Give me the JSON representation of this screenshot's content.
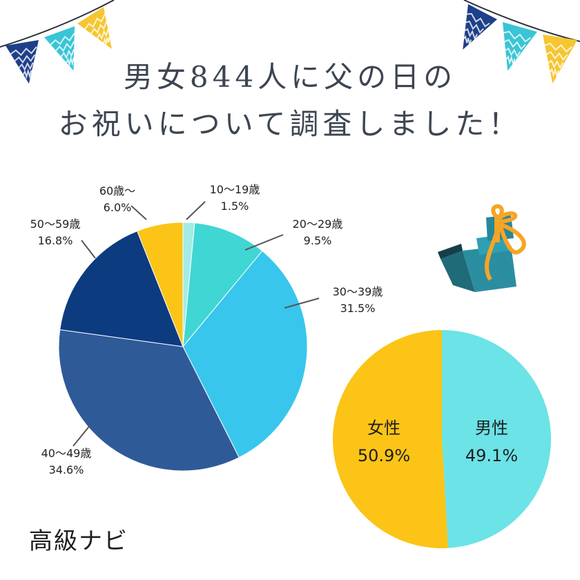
{
  "title": {
    "line1": "男女844人に父の日の",
    "line2": "お祝いについて調査しました！"
  },
  "brand": "高級ナビ",
  "colors": {
    "title": "#3d4552",
    "bunting": [
      "#1e3f8a",
      "#39c5d6",
      "#f6c630"
    ]
  },
  "icons": [
    "bunting-flag-icon",
    "gift-box-icon"
  ],
  "chart_data": [
    {
      "type": "pie",
      "categories": [
        "10〜19歳",
        "20〜29歳",
        "30〜39歳",
        "40〜49歳",
        "50〜59歳",
        "60歳〜"
      ],
      "values": [
        1.5,
        9.5,
        31.5,
        34.6,
        16.8,
        6.0
      ],
      "labels": [
        "1.5%",
        "9.5%",
        "31.5%",
        "34.6%",
        "16.8%",
        "6.0%"
      ],
      "colors": [
        "#a2ece7",
        "#40d6d4",
        "#38c6ed",
        "#2f5a98",
        "#0c3b80",
        "#fbc417"
      ],
      "start_angle_deg": 0,
      "direction": "clockwise"
    },
    {
      "type": "pie",
      "categories": [
        "男性",
        "女性"
      ],
      "values": [
        49.1,
        50.9
      ],
      "labels": [
        "49.1%",
        "50.9%"
      ],
      "colors": [
        "#6ce3e6",
        "#fbc417"
      ],
      "start_angle_deg": 0,
      "direction": "clockwise"
    }
  ]
}
